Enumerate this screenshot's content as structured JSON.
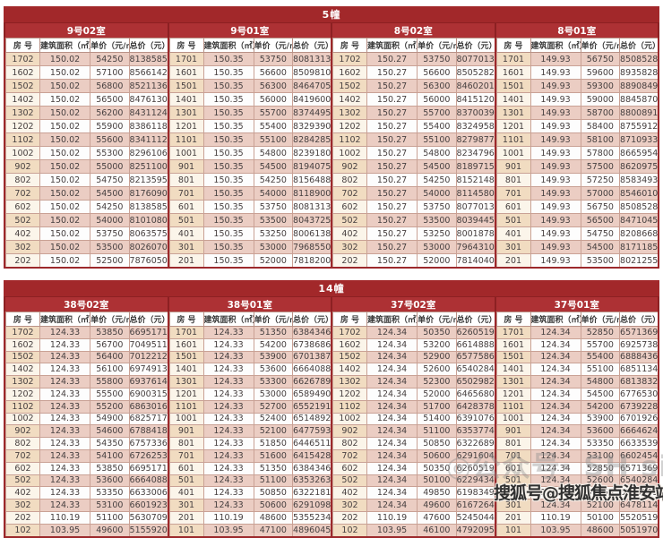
{
  "colors": {
    "banner": "#a2282a",
    "subheader": "#ad3134",
    "divider": "#8c2022",
    "tableborder": "#9c282b",
    "row_pink": "#ebcdc3",
    "room_cell_pink": "#f1dcc1",
    "room_cell_white": "#fbf5ea"
  },
  "watermarks": {
    "faint": "◎公众号· SH sifdc",
    "bold": "搜狐号@搜狐焦点淮安站"
  },
  "columns": [
    "房 号",
    "建筑面积（㎡）",
    "单价（元/㎡）",
    "总价（元）"
  ],
  "sections": [
    {
      "title": "5幢",
      "tables": [
        {
          "title": "9号02室",
          "rows": [
            [
              "1702",
              "150.02",
              "54250",
              "8138585"
            ],
            [
              "1602",
              "150.02",
              "57100",
              "8566142"
            ],
            [
              "1502",
              "150.02",
              "56800",
              "8521136"
            ],
            [
              "1402",
              "150.02",
              "56500",
              "8476130"
            ],
            [
              "1302",
              "150.02",
              "56200",
              "8431124"
            ],
            [
              "1202",
              "150.02",
              "55900",
              "8386118"
            ],
            [
              "1102",
              "150.02",
              "55600",
              "8341112"
            ],
            [
              "1002",
              "150.02",
              "55300",
              "8296106"
            ],
            [
              "902",
              "150.02",
              "55000",
              "8251100"
            ],
            [
              "802",
              "150.02",
              "54750",
              "8213595"
            ],
            [
              "702",
              "150.02",
              "54500",
              "8176090"
            ],
            [
              "602",
              "150.02",
              "54250",
              "8138585"
            ],
            [
              "502",
              "150.02",
              "54000",
              "8101080"
            ],
            [
              "402",
              "150.02",
              "53750",
              "8063575"
            ],
            [
              "302",
              "150.02",
              "53500",
              "8026070"
            ],
            [
              "202",
              "150.02",
              "52500",
              "7876050"
            ]
          ]
        },
        {
          "title": "9号01室",
          "rows": [
            [
              "1701",
              "150.35",
              "53750",
              "8081313"
            ],
            [
              "1601",
              "150.35",
              "56600",
              "8509810"
            ],
            [
              "1501",
              "150.35",
              "56300",
              "8464705"
            ],
            [
              "1401",
              "150.35",
              "56000",
              "8419600"
            ],
            [
              "1301",
              "150.35",
              "55700",
              "8374495"
            ],
            [
              "1201",
              "150.35",
              "55400",
              "8329390"
            ],
            [
              "1101",
              "150.35",
              "55100",
              "8284285"
            ],
            [
              "1001",
              "150.35",
              "54800",
              "8239180"
            ],
            [
              "901",
              "150.35",
              "54500",
              "8194075"
            ],
            [
              "801",
              "150.35",
              "54250",
              "8156488"
            ],
            [
              "701",
              "150.35",
              "54000",
              "8118900"
            ],
            [
              "601",
              "150.35",
              "53750",
              "8081313"
            ],
            [
              "501",
              "150.35",
              "53500",
              "8043725"
            ],
            [
              "401",
              "150.35",
              "53250",
              "8006138"
            ],
            [
              "301",
              "150.35",
              "53000",
              "7968550"
            ],
            [
              "201",
              "150.35",
              "52000",
              "7818200"
            ]
          ]
        },
        {
          "title": "8号02室",
          "rows": [
            [
              "1702",
              "150.27",
              "53750",
              "8077013"
            ],
            [
              "1602",
              "150.27",
              "56600",
              "8505282"
            ],
            [
              "1502",
              "150.27",
              "56300",
              "8460201"
            ],
            [
              "1402",
              "150.27",
              "56000",
              "8415120"
            ],
            [
              "1302",
              "150.27",
              "55700",
              "8370039"
            ],
            [
              "1202",
              "150.27",
              "55400",
              "8324958"
            ],
            [
              "1102",
              "150.27",
              "55100",
              "8279877"
            ],
            [
              "1002",
              "150.27",
              "54800",
              "8234796"
            ],
            [
              "902",
              "150.27",
              "54500",
              "8189715"
            ],
            [
              "802",
              "150.27",
              "54250",
              "8152148"
            ],
            [
              "702",
              "150.27",
              "54000",
              "8114580"
            ],
            [
              "602",
              "150.27",
              "53750",
              "8077013"
            ],
            [
              "502",
              "150.27",
              "53500",
              "8039445"
            ],
            [
              "402",
              "150.27",
              "53250",
              "8001878"
            ],
            [
              "302",
              "150.27",
              "53000",
              "7964310"
            ],
            [
              "202",
              "150.27",
              "52000",
              "7814040"
            ]
          ]
        },
        {
          "title": "8号01室",
          "rows": [
            [
              "1701",
              "149.93",
              "56750",
              "8508528"
            ],
            [
              "1601",
              "149.93",
              "59600",
              "8935828"
            ],
            [
              "1501",
              "149.93",
              "59300",
              "8890849"
            ],
            [
              "1401",
              "149.93",
              "59000",
              "8845870"
            ],
            [
              "1301",
              "149.93",
              "58700",
              "8800891"
            ],
            [
              "1201",
              "149.93",
              "58400",
              "8755912"
            ],
            [
              "1101",
              "149.93",
              "58100",
              "8710933"
            ],
            [
              "1001",
              "149.93",
              "57800",
              "8665954"
            ],
            [
              "901",
              "149.93",
              "57500",
              "8620975"
            ],
            [
              "801",
              "149.93",
              "57250",
              "8583493"
            ],
            [
              "701",
              "149.93",
              "57000",
              "8546010"
            ],
            [
              "601",
              "149.93",
              "56750",
              "8508528"
            ],
            [
              "501",
              "149.93",
              "56500",
              "8471045"
            ],
            [
              "401",
              "149.93",
              "54750",
              "8208668"
            ],
            [
              "301",
              "149.93",
              "54500",
              "8171185"
            ],
            [
              "201",
              "149.93",
              "53500",
              "8021255"
            ]
          ]
        }
      ]
    },
    {
      "title": "14幢",
      "tables": [
        {
          "title": "38号02室",
          "rows": [
            [
              "1702",
              "124.33",
              "53850",
              "6695171"
            ],
            [
              "1602",
              "124.33",
              "56700",
              "7049511"
            ],
            [
              "1502",
              "124.33",
              "56400",
              "7012212"
            ],
            [
              "1402",
              "124.33",
              "56100",
              "6974913"
            ],
            [
              "1302",
              "124.33",
              "55800",
              "6937614"
            ],
            [
              "1202",
              "124.33",
              "55500",
              "6900315"
            ],
            [
              "1102",
              "124.33",
              "55200",
              "6863016"
            ],
            [
              "1002",
              "124.33",
              "54900",
              "6825717"
            ],
            [
              "902",
              "124.33",
              "54600",
              "6788418"
            ],
            [
              "802",
              "124.33",
              "54350",
              "6757336"
            ],
            [
              "702",
              "124.33",
              "54100",
              "6726253"
            ],
            [
              "602",
              "124.33",
              "53850",
              "6695171"
            ],
            [
              "502",
              "124.33",
              "53600",
              "6664088"
            ],
            [
              "402",
              "124.33",
              "53350",
              "6633006"
            ],
            [
              "302",
              "124.33",
              "53100",
              "6601923"
            ],
            [
              "202",
              "110.19",
              "51100",
              "5630709"
            ],
            [
              "102",
              "103.95",
              "49600",
              "5155920"
            ]
          ]
        },
        {
          "title": "38号01室",
          "rows": [
            [
              "1701",
              "124.33",
              "51350",
              "6384346"
            ],
            [
              "1601",
              "124.33",
              "54200",
              "6738686"
            ],
            [
              "1501",
              "124.33",
              "53900",
              "6701387"
            ],
            [
              "1401",
              "124.33",
              "53600",
              "6664088"
            ],
            [
              "1301",
              "124.33",
              "53300",
              "6626789"
            ],
            [
              "1201",
              "124.33",
              "53000",
              "6589490"
            ],
            [
              "1101",
              "124.33",
              "52700",
              "6552191"
            ],
            [
              "1001",
              "124.33",
              "52400",
              "6514892"
            ],
            [
              "901",
              "124.33",
              "52100",
              "6477593"
            ],
            [
              "801",
              "124.33",
              "51850",
              "6446511"
            ],
            [
              "701",
              "124.33",
              "51600",
              "6415428"
            ],
            [
              "601",
              "124.33",
              "51350",
              "6384346"
            ],
            [
              "501",
              "124.33",
              "51100",
              "6353263"
            ],
            [
              "401",
              "124.33",
              "50850",
              "6322181"
            ],
            [
              "301",
              "124.33",
              "50600",
              "6291098"
            ],
            [
              "201",
              "110.19",
              "48600",
              "5355234"
            ],
            [
              "101",
              "103.95",
              "47100",
              "4896045"
            ]
          ]
        },
        {
          "title": "37号02室",
          "rows": [
            [
              "1702",
              "124.34",
              "50350",
              "6260519"
            ],
            [
              "1602",
              "124.34",
              "53200",
              "6614888"
            ],
            [
              "1502",
              "124.34",
              "52900",
              "6577586"
            ],
            [
              "1402",
              "124.34",
              "52600",
              "6540284"
            ],
            [
              "1302",
              "124.34",
              "52300",
              "6502982"
            ],
            [
              "1202",
              "124.34",
              "52000",
              "6465680"
            ],
            [
              "1102",
              "124.34",
              "51700",
              "6428378"
            ],
            [
              "1002",
              "124.34",
              "51400",
              "6391076"
            ],
            [
              "902",
              "124.34",
              "51100",
              "6353774"
            ],
            [
              "802",
              "124.34",
              "50850",
              "6322689"
            ],
            [
              "702",
              "124.34",
              "50600",
              "6291604"
            ],
            [
              "602",
              "124.34",
              "50350",
              "6260519"
            ],
            [
              "502",
              "124.34",
              "50100",
              "6229434"
            ],
            [
              "402",
              "124.34",
              "49850",
              "6198349"
            ],
            [
              "302",
              "124.34",
              "49600",
              "6167264"
            ],
            [
              "202",
              "110.19",
              "47600",
              "5245044"
            ],
            [
              "102",
              "103.95",
              "46100",
              "4792095"
            ]
          ]
        },
        {
          "title": "37号01室",
          "rows": [
            [
              "1701",
              "124.34",
              "52850",
              "6571369"
            ],
            [
              "1601",
              "124.34",
              "55700",
              "6925738"
            ],
            [
              "1501",
              "124.34",
              "55400",
              "6888436"
            ],
            [
              "1401",
              "124.34",
              "55100",
              "6851134"
            ],
            [
              "1301",
              "124.34",
              "54800",
              "6813832"
            ],
            [
              "1201",
              "124.34",
              "54500",
              "6776530"
            ],
            [
              "1101",
              "124.34",
              "54200",
              "6739228"
            ],
            [
              "1001",
              "124.34",
              "53900",
              "6701926"
            ],
            [
              "901",
              "124.34",
              "53600",
              "6664624"
            ],
            [
              "801",
              "124.34",
              "53350",
              "6633539"
            ],
            [
              "701",
              "124.34",
              "53100",
              "6602454"
            ],
            [
              "601",
              "124.34",
              "52850",
              "6571369"
            ],
            [
              "501",
              "124.34",
              "52600",
              "6540284"
            ],
            [
              "401",
              "124.34",
              "52350",
              "6509199"
            ],
            [
              "301",
              "124.34",
              "52100",
              "6478114"
            ],
            [
              "201",
              "110.19",
              "50100",
              "5520519"
            ],
            [
              "101",
              "103.95",
              "48600",
              "5051970"
            ]
          ]
        }
      ]
    }
  ]
}
